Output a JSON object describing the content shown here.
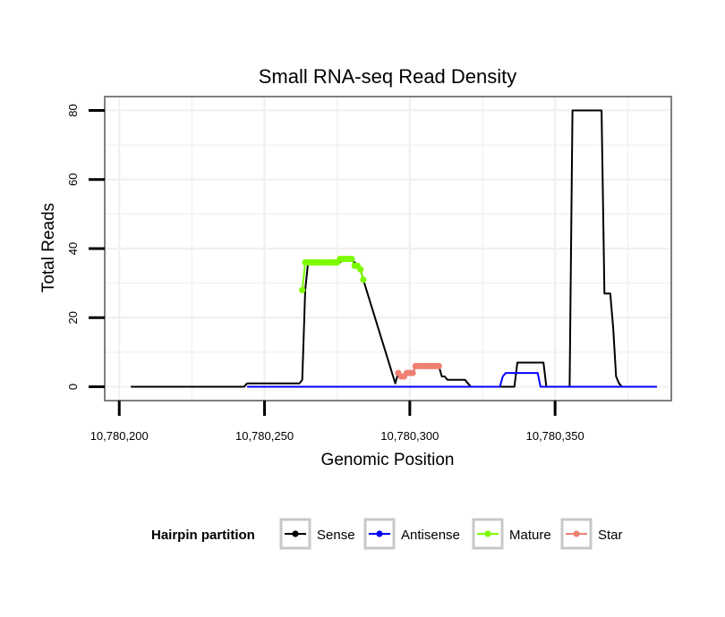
{
  "chart_data": {
    "type": "line",
    "title": "Small RNA-seq Read Density",
    "xlabel": "Genomic Position",
    "ylabel": "Total Reads",
    "xlim": [
      10780195,
      10780390
    ],
    "ylim": [
      -4,
      84
    ],
    "xticks": [
      10780200,
      10780250,
      10780300,
      10780350
    ],
    "xtick_labels": [
      "10,780,200",
      "10,780,250",
      "10,780,300",
      "10,780,350"
    ],
    "yticks": [
      0,
      20,
      40,
      60,
      80
    ],
    "ytick_labels": [
      "0",
      "20",
      "40",
      "60",
      "80"
    ],
    "grid": true,
    "legend": {
      "title": "Hairpin partition",
      "position": "bottom",
      "entries": [
        "Sense",
        "Antisense",
        "Mature",
        "Star"
      ]
    },
    "series": [
      {
        "name": "Sense",
        "color": "#000000",
        "style": "line",
        "x": [
          10780204,
          10780243,
          10780244,
          10780262,
          10780263,
          10780264,
          10780265,
          10780266,
          10780267,
          10780268,
          10780269,
          10780270,
          10780271,
          10780272,
          10780273,
          10780274,
          10780275,
          10780276,
          10780277,
          10780278,
          10780279,
          10780280,
          10780281,
          10780282,
          10780283,
          10780284,
          10780295,
          10780296,
          10780297,
          10780298,
          10780299,
          10780300,
          10780301,
          10780302,
          10780303,
          10780304,
          10780305,
          10780306,
          10780307,
          10780308,
          10780309,
          10780310,
          10780311,
          10780312,
          10780313,
          10780314,
          10780315,
          10780319,
          10780320,
          10780321,
          10780336,
          10780337,
          10780346,
          10780347,
          10780355,
          10780356,
          10780366,
          10780367,
          10780369,
          10780370,
          10780371,
          10780372,
          10780373,
          10780385
        ],
        "y": [
          0,
          0,
          1,
          1,
          2,
          28,
          36,
          36,
          36,
          36,
          36,
          36,
          36,
          36,
          36,
          36,
          36,
          36,
          37,
          37,
          37,
          37,
          36,
          35,
          34,
          31,
          1,
          4,
          3,
          3,
          4,
          4,
          4,
          6,
          6,
          6,
          6,
          6,
          6,
          6,
          6,
          6,
          3,
          3,
          2,
          2,
          2,
          2,
          1,
          0,
          0,
          7,
          7,
          0,
          0,
          80,
          80,
          27,
          27,
          17,
          3,
          1,
          0,
          0
        ]
      },
      {
        "name": "Antisense",
        "color": "#0000ff",
        "style": "line",
        "x": [
          10780244,
          10780331,
          10780332,
          10780333,
          10780344,
          10780345,
          10780385
        ],
        "y": [
          0,
          0,
          3,
          4,
          4,
          0,
          0
        ]
      },
      {
        "name": "Mature",
        "color": "#7cfc00",
        "style": "line+points",
        "x": [
          10780263,
          10780264,
          10780265,
          10780266,
          10780267,
          10780268,
          10780269,
          10780270,
          10780271,
          10780272,
          10780273,
          10780274,
          10780275,
          10780276,
          10780277,
          10780278,
          10780279,
          10780280,
          10780281,
          10780282,
          10780283,
          10780284
        ],
        "y": [
          28,
          36,
          36,
          36,
          36,
          36,
          36,
          36,
          36,
          36,
          36,
          36,
          36,
          37,
          37,
          37,
          37,
          37,
          35,
          35,
          34,
          31
        ]
      },
      {
        "name": "Star",
        "color": "#f08072",
        "style": "line+points",
        "x": [
          10780296,
          10780297,
          10780298,
          10780299,
          10780300,
          10780301,
          10780302,
          10780303,
          10780304,
          10780305,
          10780306,
          10780307,
          10780308,
          10780309,
          10780310
        ],
        "y": [
          4,
          3,
          3,
          4,
          4,
          4,
          6,
          6,
          6,
          6,
          6,
          6,
          6,
          6,
          6
        ]
      }
    ]
  }
}
